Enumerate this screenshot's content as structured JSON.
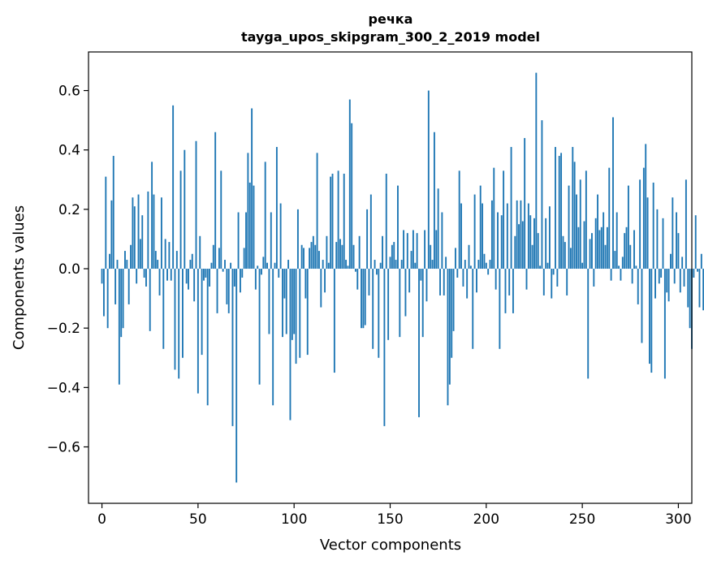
{
  "chart_data": {
    "type": "bar",
    "title": "речка",
    "subtitle": "tayga_upos_skipgram_300_2_2019 model",
    "xlabel": "Vector components",
    "ylabel": "Components values",
    "xlim": [
      -7,
      307
    ],
    "ylim": [
      -0.79,
      0.73
    ],
    "xticks": [
      0,
      50,
      100,
      150,
      200,
      250,
      300
    ],
    "xtick_labels": [
      "0",
      "50",
      "100",
      "150",
      "200",
      "250",
      "300"
    ],
    "yticks": [
      -0.6,
      -0.4,
      -0.2,
      0.0,
      0.2,
      0.4,
      0.6
    ],
    "ytick_labels": [
      "−0.6",
      "−0.4",
      "−0.2",
      "0.0",
      "0.2",
      "0.4",
      "0.6"
    ],
    "bar_color": "#1f77b4",
    "grid": false,
    "x_start": 0,
    "values": [
      -0.05,
      -0.16,
      0.31,
      -0.2,
      0.05,
      0.23,
      0.38,
      -0.12,
      0.03,
      -0.39,
      -0.23,
      -0.2,
      0.06,
      0.03,
      -0.12,
      0.08,
      0.24,
      0.21,
      -0.05,
      0.25,
      0.1,
      0.18,
      -0.03,
      -0.06,
      0.26,
      -0.21,
      0.36,
      0.25,
      0.06,
      0.03,
      -0.09,
      0.24,
      -0.27,
      0.1,
      -0.04,
      0.09,
      -0.04,
      0.55,
      -0.34,
      0.06,
      -0.37,
      0.33,
      -0.3,
      0.4,
      -0.05,
      -0.07,
      0.03,
      0.05,
      -0.11,
      0.43,
      -0.42,
      0.11,
      -0.29,
      -0.04,
      -0.03,
      -0.46,
      -0.06,
      0.02,
      0.08,
      0.46,
      -0.15,
      0.07,
      0.33,
      -0.01,
      0.03,
      -0.12,
      -0.15,
      0.02,
      -0.53,
      -0.06,
      -0.72,
      0.19,
      -0.08,
      -0.03,
      0.07,
      0.19,
      0.39,
      0.29,
      0.54,
      0.28,
      -0.07,
      0.01,
      -0.39,
      -0.02,
      0.04,
      0.36,
      0.02,
      -0.22,
      0.19,
      -0.46,
      0.02,
      0.41,
      -0.03,
      0.22,
      -0.23,
      -0.1,
      -0.22,
      0.03,
      -0.51,
      -0.24,
      -0.22,
      -0.32,
      0.2,
      -0.3,
      0.08,
      0.07,
      -0.1,
      -0.29,
      0.07,
      0.09,
      0.11,
      0.08,
      0.39,
      0.06,
      -0.13,
      0.03,
      -0.08,
      0.11,
      0.02,
      0.31,
      0.32,
      -0.35,
      0.09,
      0.33,
      0.1,
      0.08,
      0.32,
      0.03,
      0.01,
      0.57,
      0.49,
      0.08,
      -0.01,
      -0.07,
      0.11,
      -0.2,
      -0.2,
      -0.19,
      0.2,
      -0.09,
      0.25,
      -0.27,
      0.03,
      -0.02,
      -0.3,
      0.02,
      0.11,
      -0.53,
      0.32,
      -0.24,
      0.04,
      0.08,
      0.09,
      0.03,
      0.28,
      -0.23,
      0.03,
      0.13,
      -0.16,
      0.12,
      -0.08,
      0.06,
      0.13,
      0.02,
      0.12,
      -0.5,
      -0.04,
      -0.23,
      0.13,
      -0.11,
      0.6,
      0.08,
      0.03,
      0.46,
      0.13,
      0.27,
      -0.09,
      0.19,
      -0.09,
      0.04,
      -0.46,
      -0.39,
      -0.3,
      -0.21,
      0.07,
      -0.03,
      0.33,
      0.22,
      -0.06,
      0.03,
      -0.1,
      0.08,
      0.01,
      -0.27,
      0.25,
      -0.08,
      0.03,
      0.28,
      0.22,
      0.05,
      0.02,
      -0.02,
      0.03,
      0.23,
      0.34,
      -0.07,
      0.19,
      -0.27,
      0.18,
      0.33,
      -0.15,
      0.22,
      -0.09,
      0.41,
      -0.15,
      0.11,
      0.23,
      0.15,
      0.23,
      0.16,
      0.44,
      -0.07,
      0.22,
      0.18,
      0.08,
      0.17,
      0.66,
      0.12,
      0.01,
      0.5,
      -0.09,
      0.17,
      0.02,
      0.21,
      -0.1,
      -0.02,
      0.41,
      -0.06,
      0.38,
      0.39,
      0.11,
      0.09,
      -0.09,
      0.28,
      0.07,
      0.41,
      0.36,
      0.25,
      0.14,
      0.3,
      0.02,
      0.16,
      0.33,
      -0.37,
      0.1,
      0.12,
      -0.06,
      0.17,
      0.25,
      0.13,
      0.14,
      0.19,
      0.08,
      0.14,
      0.34,
      -0.04,
      0.51,
      0.06,
      0.19,
      0.01,
      -0.04,
      0.04,
      0.12,
      0.14,
      0.28,
      0.08,
      -0.05,
      0.13,
      0.01,
      -0.12,
      0.3,
      -0.25,
      0.34,
      0.42,
      0.24,
      -0.32,
      -0.35,
      0.29,
      -0.1,
      0.2,
      -0.05,
      -0.03,
      0.17,
      -0.37,
      -0.08,
      -0.11,
      0.05,
      0.24,
      -0.05,
      0.19,
      0.12,
      -0.08,
      0.04,
      -0.06,
      0.3,
      -0.13,
      -0.2,
      -0.27,
      -0.03,
      0.18,
      -0.01,
      -0.13,
      0.05,
      -0.14
    ]
  }
}
